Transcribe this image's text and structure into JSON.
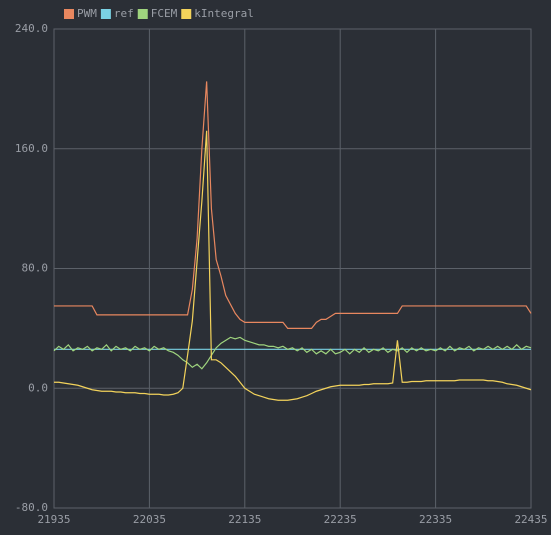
{
  "chart_data": {
    "type": "line",
    "x": [
      21935,
      21940,
      21945,
      21950,
      21955,
      21960,
      21965,
      21970,
      21975,
      21980,
      21985,
      21990,
      21995,
      22000,
      22005,
      22010,
      22015,
      22020,
      22025,
      22030,
      22035,
      22040,
      22045,
      22050,
      22055,
      22060,
      22065,
      22070,
      22075,
      22080,
      22085,
      22090,
      22095,
      22100,
      22105,
      22110,
      22115,
      22120,
      22125,
      22130,
      22135,
      22140,
      22145,
      22150,
      22155,
      22160,
      22165,
      22170,
      22175,
      22180,
      22185,
      22190,
      22195,
      22200,
      22205,
      22210,
      22215,
      22220,
      22225,
      22230,
      22235,
      22240,
      22245,
      22250,
      22255,
      22260,
      22265,
      22270,
      22275,
      22280,
      22285,
      22290,
      22295,
      22300,
      22305,
      22310,
      22315,
      22320,
      22325,
      22330,
      22335,
      22340,
      22345,
      22350,
      22355,
      22360,
      22365,
      22370,
      22375,
      22380,
      22385,
      22390,
      22395,
      22400,
      22405,
      22410,
      22415,
      22420,
      22425,
      22430,
      22435
    ],
    "series": [
      {
        "name": "PWM",
        "color": "#e8875f",
        "values": [
          55,
          55,
          55,
          55,
          55,
          55,
          55,
          55,
          55,
          49,
          49,
          49,
          49,
          49,
          49,
          49,
          49,
          49,
          49,
          49,
          49,
          49,
          49,
          49,
          49,
          49,
          49,
          49,
          49,
          66,
          100,
          160,
          205,
          120,
          86,
          75,
          62,
          56,
          50,
          46,
          44,
          44,
          44,
          44,
          44,
          44,
          44,
          44,
          44,
          40,
          40,
          40,
          40,
          40,
          40,
          44,
          46,
          46,
          48,
          50,
          50,
          50,
          50,
          50,
          50,
          50,
          50,
          50,
          50,
          50,
          50,
          50,
          50,
          55,
          55,
          55,
          55,
          55,
          55,
          55,
          55,
          55,
          55,
          55,
          55,
          55,
          55,
          55,
          55,
          55,
          55,
          55,
          55,
          55,
          55,
          55,
          55,
          55,
          55,
          55,
          50
        ]
      },
      {
        "name": "ref",
        "color": "#7bd2e4",
        "values": [
          26,
          26,
          26,
          26,
          26,
          26,
          26,
          26,
          26,
          26,
          26,
          26,
          26,
          26,
          26,
          26,
          26,
          26,
          26,
          26,
          26,
          26,
          26,
          26,
          26,
          26,
          26,
          26,
          26,
          26,
          26,
          26,
          26,
          26,
          26,
          26,
          26,
          26,
          26,
          26,
          26,
          26,
          26,
          26,
          26,
          26,
          26,
          26,
          26,
          26,
          26,
          26,
          26,
          26,
          26,
          26,
          26,
          26,
          26,
          26,
          26,
          26,
          26,
          26,
          26,
          26,
          26,
          26,
          26,
          26,
          26,
          26,
          26,
          26,
          26,
          26,
          26,
          26,
          26,
          26,
          26,
          26,
          26,
          26,
          26,
          26,
          26,
          26,
          26,
          26,
          26,
          26,
          26,
          26,
          26,
          26,
          26,
          26,
          26,
          26,
          26
        ]
      },
      {
        "name": "FCEM",
        "color": "#9fd47e",
        "values": [
          25,
          28,
          26,
          29,
          25,
          27,
          26,
          28,
          25,
          27,
          26,
          29,
          25,
          28,
          26,
          27,
          25,
          28,
          26,
          27,
          25,
          28,
          26,
          27,
          25,
          24,
          22,
          19,
          17,
          14,
          16,
          13,
          17,
          22,
          27,
          30,
          32,
          34,
          33,
          34,
          32,
          31,
          30,
          29,
          29,
          28,
          28,
          27,
          28,
          26,
          27,
          25,
          27,
          24,
          26,
          23,
          25,
          23,
          26,
          23,
          24,
          26,
          23,
          26,
          24,
          27,
          24,
          26,
          25,
          27,
          24,
          26,
          25,
          27,
          24,
          27,
          25,
          27,
          25,
          26,
          25,
          27,
          25,
          28,
          25,
          27,
          26,
          28,
          25,
          27,
          26,
          28,
          26,
          28,
          26,
          28,
          26,
          29,
          26,
          28,
          27
        ]
      },
      {
        "name": "kIntegral",
        "color": "#f3d35b",
        "values": [
          4,
          4,
          3.5,
          3,
          2.5,
          2,
          1,
          0,
          -1,
          -1.5,
          -2,
          -2,
          -2,
          -2.5,
          -2.5,
          -3,
          -3,
          -3,
          -3.5,
          -3.5,
          -4,
          -4,
          -4,
          -4.5,
          -4.5,
          -4,
          -3,
          0,
          22,
          45,
          85,
          125,
          172,
          19,
          19,
          17,
          14,
          11,
          8,
          4,
          0,
          -2,
          -4,
          -5,
          -6,
          -7,
          -7.5,
          -8,
          -8,
          -8,
          -7.5,
          -7,
          -6,
          -5,
          -3.5,
          -2,
          -1,
          0,
          1,
          1.5,
          2,
          2,
          2,
          2,
          2,
          2.5,
          2.5,
          3,
          3,
          3,
          3,
          3.5,
          32,
          4,
          4,
          4.5,
          4.5,
          4.5,
          5,
          5,
          5,
          5,
          5,
          5,
          5,
          5.5,
          5.5,
          5.5,
          5.5,
          5.5,
          5.5,
          5,
          5,
          4.5,
          4,
          3,
          2.5,
          2,
          1,
          0,
          -1
        ]
      }
    ],
    "xlim": [
      21935,
      22435
    ],
    "xticks": [
      21935,
      22035,
      22135,
      22235,
      22335,
      22435
    ],
    "ylim": [
      -80,
      240
    ],
    "yticks": [
      {
        "value": -80,
        "label": "-80.0"
      },
      {
        "value": 0,
        "label": "0.0"
      },
      {
        "value": 80,
        "label": "80.0"
      },
      {
        "value": 160,
        "label": "160.0"
      },
      {
        "value": 240,
        "label": "240.0"
      }
    ],
    "grid": true
  }
}
